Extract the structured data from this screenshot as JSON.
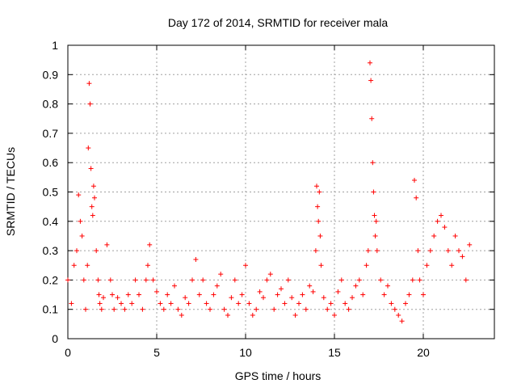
{
  "chart_data": {
    "type": "scatter",
    "title": "Day 172 of 2014, SRMTID for receiver mala",
    "xlabel": "GPS time / hours",
    "ylabel": "SRMTID / TECUs",
    "xlim": [
      0,
      24
    ],
    "ylim": [
      0,
      1
    ],
    "xticks": [
      0,
      5,
      10,
      15,
      20
    ],
    "yticks": [
      0,
      0.1,
      0.2,
      0.3,
      0.4,
      0.5,
      0.6,
      0.7,
      0.8,
      0.9,
      1
    ],
    "xtick_labels": [
      "0",
      "5",
      "10",
      "15",
      "20"
    ],
    "ytick_labels": [
      "0",
      "0.1",
      "0.2",
      "0.3",
      "0.4",
      "0.5",
      "0.6",
      "0.7",
      "0.8",
      "0.9",
      "1"
    ],
    "grid": true,
    "marker": "+",
    "color": "#ff0000",
    "series": [
      {
        "name": "SRMTID",
        "x": [
          0.0,
          0.2,
          0.35,
          0.5,
          0.6,
          0.7,
          0.8,
          0.9,
          1.0,
          1.1,
          1.15,
          1.2,
          1.25,
          1.3,
          1.35,
          1.4,
          1.45,
          1.5,
          1.6,
          1.7,
          1.75,
          1.8,
          1.9,
          2.0,
          2.2,
          2.4,
          2.5,
          2.6,
          2.8,
          3.0,
          3.2,
          3.4,
          3.6,
          3.8,
          4.0,
          4.2,
          4.4,
          4.5,
          4.6,
          4.8,
          5.0,
          5.2,
          5.4,
          5.6,
          5.8,
          6.0,
          6.2,
          6.4,
          6.6,
          6.8,
          7.0,
          7.2,
          7.4,
          7.6,
          7.8,
          8.0,
          8.2,
          8.4,
          8.6,
          8.8,
          9.0,
          9.2,
          9.4,
          9.6,
          9.8,
          10.0,
          10.2,
          10.4,
          10.6,
          10.8,
          11.0,
          11.2,
          11.4,
          11.6,
          11.8,
          12.0,
          12.2,
          12.4,
          12.6,
          12.8,
          13.0,
          13.2,
          13.4,
          13.6,
          13.8,
          13.95,
          14.0,
          14.05,
          14.1,
          14.15,
          14.2,
          14.25,
          14.4,
          14.6,
          14.8,
          15.0,
          15.2,
          15.4,
          15.6,
          15.8,
          16.0,
          16.2,
          16.4,
          16.6,
          16.8,
          16.9,
          17.0,
          17.05,
          17.1,
          17.15,
          17.2,
          17.25,
          17.3,
          17.35,
          17.4,
          17.6,
          17.8,
          18.0,
          18.2,
          18.4,
          18.6,
          18.8,
          19.0,
          19.2,
          19.4,
          19.5,
          19.6,
          19.7,
          19.8,
          20.0,
          20.2,
          20.4,
          20.6,
          20.8,
          21.0,
          21.2,
          21.4,
          21.6,
          21.8,
          22.0,
          22.2,
          22.4,
          22.6
        ],
        "y": [
          0.2,
          0.12,
          0.25,
          0.3,
          0.49,
          0.4,
          0.35,
          0.2,
          0.1,
          0.25,
          0.65,
          0.87,
          0.8,
          0.58,
          0.45,
          0.42,
          0.52,
          0.48,
          0.3,
          0.2,
          0.15,
          0.12,
          0.1,
          0.14,
          0.32,
          0.2,
          0.15,
          0.1,
          0.14,
          0.12,
          0.1,
          0.15,
          0.12,
          0.2,
          0.15,
          0.1,
          0.2,
          0.25,
          0.32,
          0.2,
          0.16,
          0.12,
          0.1,
          0.15,
          0.12,
          0.18,
          0.1,
          0.08,
          0.14,
          0.12,
          0.2,
          0.27,
          0.15,
          0.2,
          0.12,
          0.1,
          0.15,
          0.18,
          0.22,
          0.1,
          0.08,
          0.14,
          0.2,
          0.12,
          0.15,
          0.25,
          0.12,
          0.08,
          0.1,
          0.16,
          0.14,
          0.2,
          0.22,
          0.1,
          0.15,
          0.17,
          0.12,
          0.2,
          0.14,
          0.08,
          0.12,
          0.15,
          0.1,
          0.18,
          0.16,
          0.3,
          0.52,
          0.45,
          0.4,
          0.5,
          0.35,
          0.25,
          0.14,
          0.1,
          0.12,
          0.08,
          0.16,
          0.2,
          0.12,
          0.1,
          0.14,
          0.18,
          0.2,
          0.15,
          0.25,
          0.3,
          0.94,
          0.88,
          0.75,
          0.6,
          0.5,
          0.42,
          0.35,
          0.4,
          0.3,
          0.2,
          0.15,
          0.18,
          0.12,
          0.1,
          0.08,
          0.06,
          0.12,
          0.15,
          0.2,
          0.54,
          0.48,
          0.3,
          0.2,
          0.15,
          0.25,
          0.3,
          0.35,
          0.4,
          0.42,
          0.38,
          0.3,
          0.25,
          0.35,
          0.3,
          0.28,
          0.2,
          0.32
        ]
      }
    ]
  }
}
